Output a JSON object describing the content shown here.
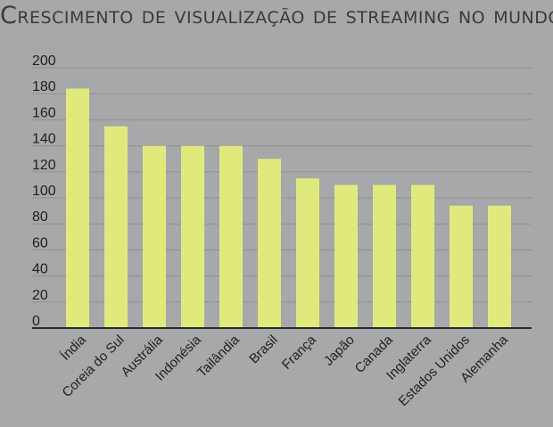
{
  "chart_data": {
    "type": "bar",
    "title": "Crescimento de visualização de streaming no mundo",
    "xlabel": "",
    "ylabel": "",
    "ylim": [
      0,
      200
    ],
    "yticks": [
      0,
      20,
      40,
      60,
      80,
      100,
      120,
      140,
      160,
      180,
      200
    ],
    "categories": [
      "Índia",
      "Coreia do Sul",
      "Austrália",
      "Indonésia",
      "Tailândia",
      "Brasil",
      "França",
      "Japão",
      "Canada",
      "Inglaterra",
      "Estados Unidos",
      "Alemanha"
    ],
    "values": [
      184,
      155,
      140,
      140,
      140,
      130,
      115,
      110,
      110,
      110,
      94,
      94
    ],
    "grid": true,
    "colors": {
      "bar": "#e0ea7c",
      "grid": "#8d8f91",
      "axis": "#2a2a2a"
    }
  }
}
